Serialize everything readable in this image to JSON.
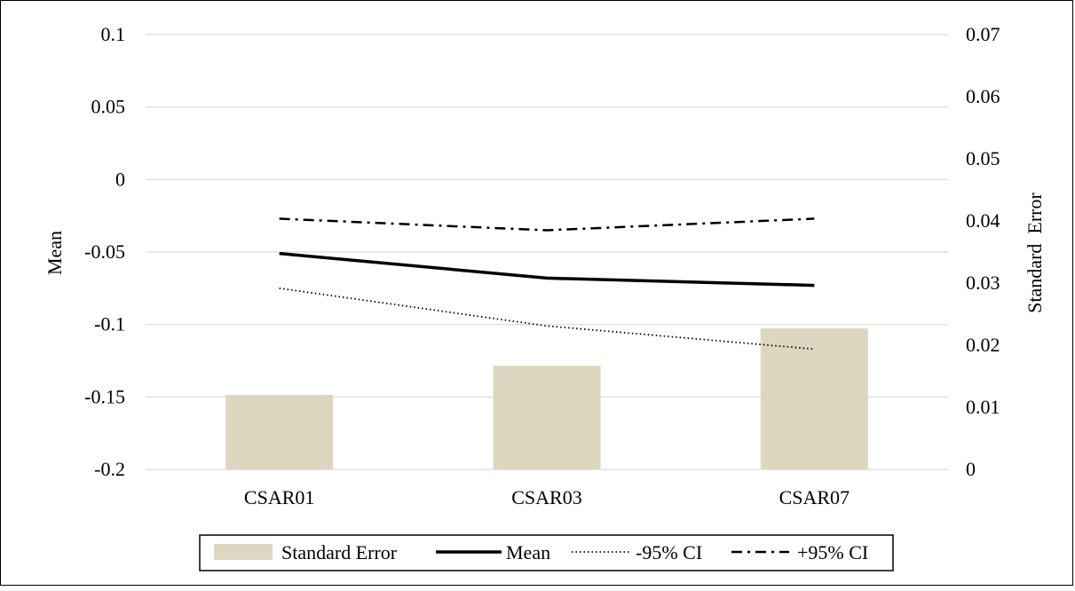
{
  "chart_data": {
    "type": "bar+line",
    "categories": [
      "CSAR01",
      "CSAR03",
      "CSAR07"
    ],
    "bar_series": {
      "name": "Standard Error",
      "axis": "right",
      "values": [
        0.012,
        0.0167,
        0.0227
      ],
      "color": "#ddd7c2"
    },
    "line_series": [
      {
        "name": "Mean",
        "axis": "left",
        "values": [
          -0.051,
          -0.068,
          -0.073
        ],
        "color": "#000000",
        "style": "solid"
      },
      {
        "name": "-95% CI",
        "axis": "left",
        "values": [
          -0.075,
          -0.101,
          -0.117
        ],
        "color": "#000000",
        "style": "dotted"
      },
      {
        "name": "+95% CI",
        "axis": "left",
        "values": [
          -0.027,
          -0.035,
          -0.027
        ],
        "color": "#000000",
        "style": "dashdot"
      }
    ],
    "ylabel_left": "Mean",
    "ylabel_right": "Standard  Error",
    "ylim_left": [
      -0.2,
      0.1
    ],
    "yticks_left": [
      0.1,
      0.05,
      0,
      -0.05,
      -0.1,
      -0.15,
      -0.2
    ],
    "yticklabels_left": [
      "0.1",
      "0.05",
      "0",
      "-0.05",
      "-0.1",
      "-0.15",
      "-0.2"
    ],
    "ylim_right": [
      0,
      0.07
    ],
    "yticks_right": [
      0.07,
      0.06,
      0.05,
      0.04,
      0.03,
      0.02,
      0.01,
      0
    ],
    "yticklabels_right": [
      "0.07",
      "0.06",
      "0.05",
      "0.04",
      "0.03",
      "0.02",
      "0.01",
      "0"
    ],
    "grid": true,
    "gridline_color": "#d9d9d9",
    "legend_position": "bottom",
    "legend_entries": [
      "Standard Error",
      "Mean",
      "-95% CI",
      "+95% CI"
    ]
  }
}
